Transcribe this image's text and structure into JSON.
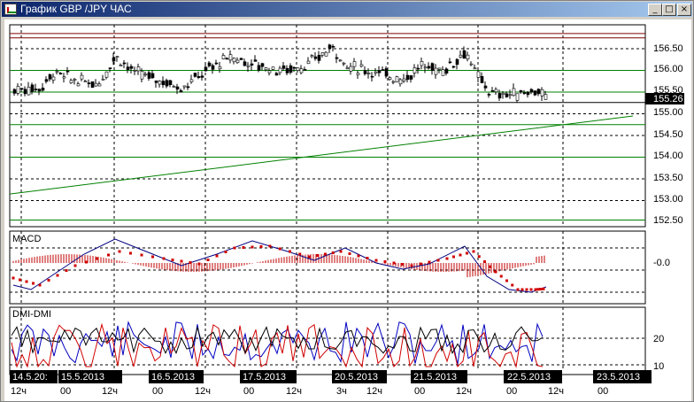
{
  "window": {
    "title": "График GBP /JPY  ЧАС",
    "buttons": {
      "minimize": "_",
      "maximize": "□",
      "close": "×"
    }
  },
  "price_panel": {
    "y_ticks": [
      "156.50",
      "156.00",
      "155.50",
      "155.00",
      "154.50",
      "154.00",
      "153.50",
      "153.00",
      "152.50"
    ],
    "current_price": "155.26",
    "horizontal_levels": [
      156.85,
      156.75,
      156.0,
      155.5,
      155.26,
      154.75,
      154.0,
      152.55
    ],
    "trend_line": {
      "start": 153.15,
      "end": 154.95
    }
  },
  "macd_panel": {
    "label": "MACD",
    "zero_label": "-0.0"
  },
  "dmi_panel": {
    "label": "DMI-DMI",
    "ticks": [
      "20",
      "10"
    ]
  },
  "x_axis": {
    "dates": [
      "14.5.20:",
      "15.5.2013",
      "16.5.2013",
      "17.5.2013",
      "20.5.2013",
      "21.5.2013",
      "22.5.2013",
      "23.5.2013"
    ],
    "hours": [
      "12ч",
      "00",
      "12ч",
      "00",
      "12ч",
      "00",
      "12ч",
      "3ч",
      "12ч",
      "00",
      "12ч",
      "00",
      "12ч",
      "00"
    ]
  },
  "colors": {
    "up_line": "#008000",
    "level_red": "#800000",
    "macd_signal": "#d00000",
    "macd_line": "#000080",
    "dmi_plus": "#0000c0",
    "dmi_minus": "#d00000",
    "adx": "#000000"
  }
}
